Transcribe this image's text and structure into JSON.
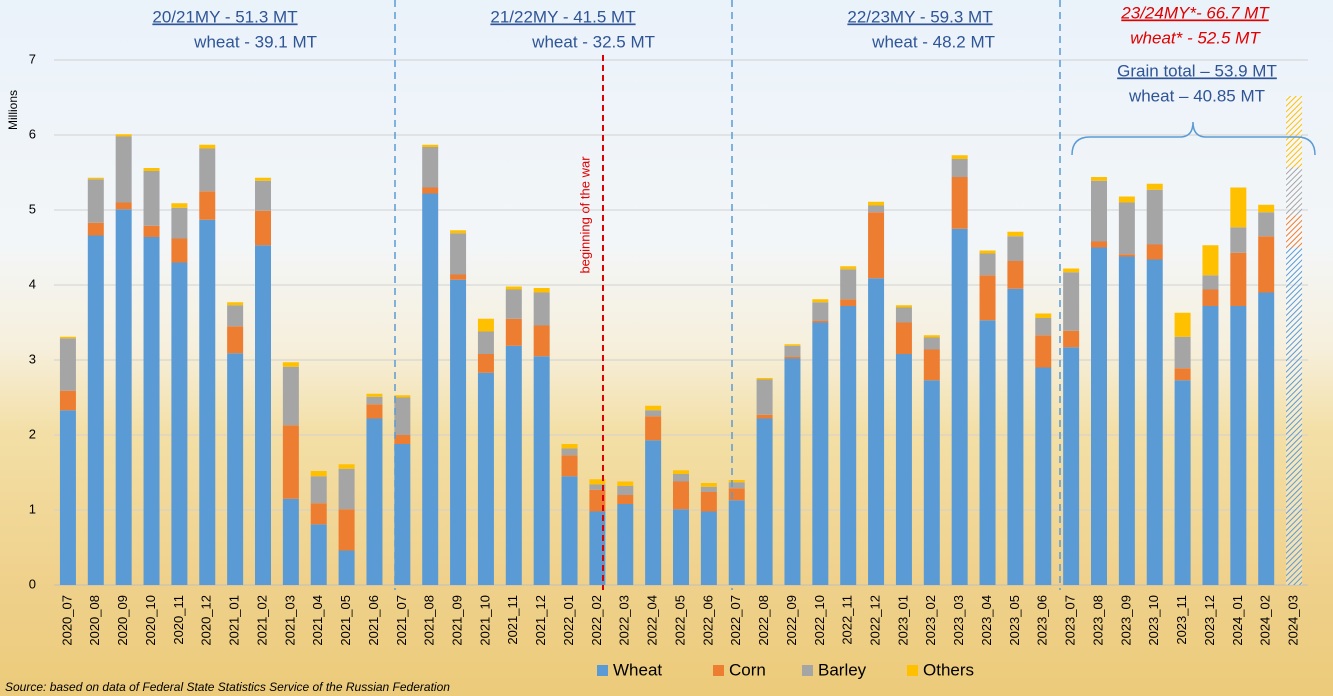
{
  "chart_data": {
    "type": "stacked_bar",
    "y_axis_label": "Millions",
    "categories": [
      "2020_07",
      "2020_08",
      "2020_09",
      "2020_10",
      "2020_11",
      "2020_12",
      "2021_01",
      "2021_02",
      "2021_03",
      "2021_04",
      "2021_05",
      "2021_06",
      "2021_07",
      "2021_08",
      "2021_09",
      "2021_10",
      "2021_11",
      "2021_12",
      "2022_01",
      "2022_02",
      "2022_03",
      "2022_04",
      "2022_05",
      "2022_06",
      "2022_07",
      "2022_08",
      "2022_09",
      "2022_10",
      "2022_11",
      "2022_12",
      "2023_01",
      "2023_02",
      "2023_03",
      "2023_04",
      "2023_05",
      "2023_06",
      "2023_07",
      "2023_08",
      "2023_09",
      "2023_10",
      "2023_11",
      "2023_12",
      "2024_01",
      "2024_02",
      "2024_03"
    ],
    "series": [
      {
        "name": "Wheat",
        "color": "#5b9bd5",
        "values": [
          2.33,
          4.66,
          5.01,
          4.64,
          4.3,
          4.87,
          3.09,
          4.53,
          1.15,
          0.81,
          0.46,
          2.22,
          1.88,
          5.22,
          4.07,
          2.83,
          3.19,
          3.05,
          1.45,
          0.98,
          1.08,
          1.93,
          1.01,
          0.98,
          1.13,
          2.22,
          3.02,
          3.5,
          3.72,
          4.09,
          3.08,
          2.73,
          4.75,
          3.53,
          3.95,
          2.9,
          3.17,
          4.5,
          4.38,
          4.34,
          2.73,
          3.72,
          3.72,
          3.9,
          4.5
        ]
      },
      {
        "name": "Corn",
        "color": "#ed7d31",
        "values": [
          0.26,
          0.17,
          0.09,
          0.15,
          0.32,
          0.38,
          0.36,
          0.46,
          0.98,
          0.28,
          0.55,
          0.19,
          0.12,
          0.08,
          0.07,
          0.25,
          0.36,
          0.41,
          0.28,
          0.29,
          0.12,
          0.32,
          0.37,
          0.26,
          0.16,
          0.05,
          0.02,
          0.02,
          0.09,
          0.88,
          0.42,
          0.41,
          0.69,
          0.6,
          0.37,
          0.43,
          0.22,
          0.08,
          0.03,
          0.2,
          0.16,
          0.22,
          0.71,
          0.75,
          0.43
        ]
      },
      {
        "name": "Barley",
        "color": "#a5a5a5",
        "values": [
          0.7,
          0.58,
          0.88,
          0.73,
          0.41,
          0.57,
          0.28,
          0.4,
          0.78,
          0.36,
          0.54,
          0.1,
          0.5,
          0.54,
          0.55,
          0.3,
          0.39,
          0.44,
          0.09,
          0.07,
          0.12,
          0.08,
          0.1,
          0.07,
          0.08,
          0.47,
          0.15,
          0.25,
          0.4,
          0.09,
          0.2,
          0.16,
          0.24,
          0.29,
          0.33,
          0.23,
          0.78,
          0.81,
          0.69,
          0.73,
          0.42,
          0.19,
          0.34,
          0.32,
          0.64
        ]
      },
      {
        "name": "Others",
        "color": "#ffc000",
        "values": [
          0.02,
          0.02,
          0.03,
          0.04,
          0.06,
          0.05,
          0.04,
          0.04,
          0.06,
          0.07,
          0.06,
          0.04,
          0.03,
          0.03,
          0.04,
          0.17,
          0.04,
          0.06,
          0.06,
          0.07,
          0.06,
          0.06,
          0.05,
          0.05,
          0.03,
          0.02,
          0.02,
          0.04,
          0.04,
          0.05,
          0.03,
          0.03,
          0.05,
          0.04,
          0.06,
          0.06,
          0.05,
          0.05,
          0.08,
          0.08,
          0.32,
          0.4,
          0.53,
          0.1,
          0.95
        ]
      }
    ],
    "hatched_index": 44,
    "ylim": [
      0,
      7
    ],
    "yticks": [
      0,
      1,
      2,
      3,
      4,
      5,
      6,
      7
    ],
    "grid": true,
    "legend": "bottom",
    "annotations": {
      "my_2021": "20/21MY - 51.3 MT",
      "wheat_2021": "wheat - 39.1 MT",
      "my_2122": "21/22MY - 41.5 MT",
      "wheat_2122": "wheat - 32.5 MT",
      "my_2223": "22/23MY - 59.3 MT",
      "wheat_2223": "wheat - 48.2 MT",
      "my_2324": "23/24MY*- 66.7 MT",
      "wheat_2324": "wheat* - 52.5 MT",
      "grain_total": "Grain total – 53.9 MT",
      "wheat_total": "wheat – 40.85 MT",
      "war": "beginning of the war"
    },
    "source": "Source: based on data of Federal State Statistics Service of the Russian Federation"
  }
}
